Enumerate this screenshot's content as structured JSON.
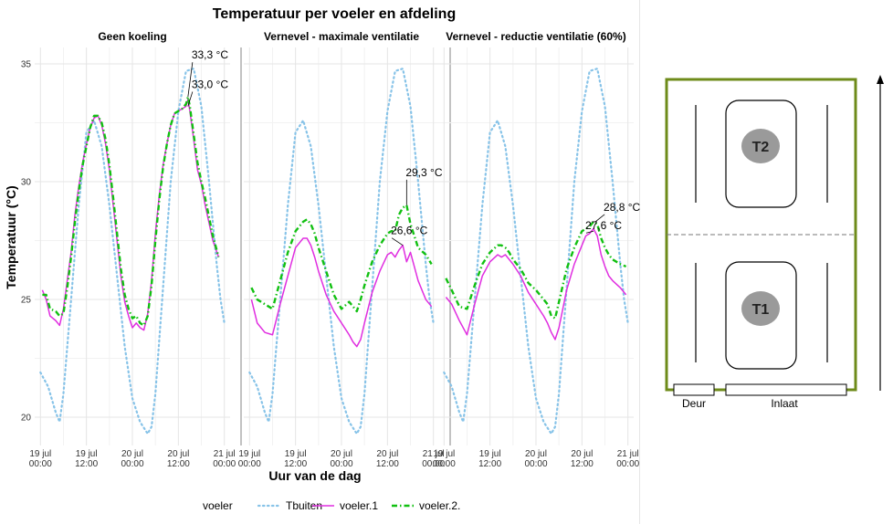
{
  "chart_data": {
    "type": "line",
    "title": "Temperatuur per voeler en afdeling",
    "xlabel": "Uur van de dag",
    "ylabel": "Temperatuur (°C)",
    "ylim": [
      18.8,
      35.7
    ],
    "xlim": [
      -1.5,
      49.5
    ],
    "x_unit": "hours since 19 jul 00:00",
    "x_ticks": [
      0,
      12,
      24,
      36,
      48
    ],
    "x_tick_labels": [
      "19 jul\n00:00",
      "19 jul\n12:00",
      "20 jul\n00:00",
      "20 jul\n12:00",
      "21 jul\n00:00"
    ],
    "y_ticks": [
      20,
      25,
      30,
      35
    ],
    "y_tick_labels": [
      "20",
      "25",
      "30",
      "35"
    ],
    "grid": true,
    "legend": {
      "title": "voeler",
      "placement": "bottom",
      "entries": [
        "Tbuiten",
        "voeler.1",
        "voeler.2."
      ]
    },
    "colors": {
      "Tbuiten": "#87c3e8",
      "voeler.1": "#e02ee0",
      "voeler.2.": "#11c011"
    },
    "outside": {
      "name": "Tbuiten",
      "x": [
        0,
        2,
        4,
        5,
        6,
        8,
        10,
        12,
        14,
        16,
        18,
        20,
        22,
        24,
        26,
        28,
        29,
        30,
        32,
        34,
        36,
        38,
        40,
        42,
        44,
        46,
        47,
        48
      ],
      "y": [
        21.9,
        21.3,
        20.2,
        19.8,
        21.0,
        25.0,
        29.0,
        32.1,
        32.6,
        31.5,
        29.0,
        26.0,
        23.0,
        20.8,
        19.8,
        19.3,
        19.6,
        21.0,
        25.5,
        30.0,
        33.0,
        34.7,
        34.8,
        33.2,
        30.0,
        26.5,
        25.0,
        24.0
      ]
    },
    "panels": [
      {
        "title": "Geen koeling",
        "series": [
          {
            "name": "voeler.1",
            "x": [
              0.5,
              1.5,
              2.5,
              4,
              5,
              6,
              7,
              8,
              9,
              10,
              11,
              12,
              13,
              14,
              15,
              16,
              17,
              18,
              19,
              20,
              21,
              22,
              23,
              24,
              25,
              26,
              27,
              28,
              29,
              30,
              31,
              32,
              33,
              34,
              35,
              36,
              37,
              38,
              38.5,
              39,
              40,
              41,
              42,
              43,
              45,
              46.5
            ],
            "y": [
              25.4,
              25.0,
              24.3,
              24.1,
              23.9,
              24.6,
              25.8,
              27.0,
              28.6,
              29.8,
              30.8,
              31.6,
              32.3,
              32.7,
              32.8,
              32.4,
              31.6,
              30.5,
              29.0,
              27.5,
              26.0,
              24.9,
              24.3,
              23.8,
              24.0,
              23.8,
              23.7,
              24.4,
              25.8,
              27.8,
              29.4,
              30.7,
              31.6,
              32.4,
              32.9,
              33.0,
              33.1,
              33.2,
              33.5,
              33.0,
              31.8,
              30.5,
              29.9,
              29.0,
              27.5,
              26.8
            ]
          },
          {
            "name": "voeler.2.",
            "x": [
              0.5,
              1.5,
              2.5,
              4,
              5,
              6,
              7,
              8,
              9,
              10,
              11,
              12,
              13,
              14,
              15,
              16,
              17,
              18,
              19,
              20,
              21,
              22,
              23,
              24,
              25,
              26,
              27,
              28,
              29,
              30,
              31,
              32,
              33,
              34,
              35,
              36,
              37,
              38,
              38.5,
              39,
              40,
              41,
              42,
              43,
              45,
              46.5
            ],
            "y": [
              25.2,
              25.2,
              24.6,
              24.5,
              24.3,
              24.4,
              25.5,
              26.8,
              28.3,
              29.6,
              30.7,
              31.5,
              32.3,
              32.8,
              32.8,
              32.5,
              31.8,
              30.7,
              29.3,
              27.8,
              26.3,
              25.2,
              24.6,
              24.2,
              24.3,
              24.0,
              23.9,
              24.3,
              25.6,
              27.5,
              29.2,
              30.6,
              31.6,
              32.4,
              32.9,
              33.0,
              33.1,
              33.3,
              33.6,
              33.2,
              32.0,
              30.8,
              30.0,
              29.3,
              27.7,
              26.8
            ]
          }
        ],
        "annotations": [
          {
            "text": "33,3 °C",
            "x": 38.5,
            "y": 33.6
          },
          {
            "text": "33,0 °C",
            "x": 38.5,
            "y": 33.2
          }
        ]
      },
      {
        "title": "Vernevel - maximale ventilatie",
        "series": [
          {
            "name": "voeler.1",
            "x": [
              0.5,
              2,
              4,
              6,
              8,
              10,
              12,
              14,
              15,
              16,
              17,
              18,
              20,
              22,
              24,
              26,
              27,
              28,
              29,
              30,
              32,
              34,
              36,
              37,
              38,
              39,
              40,
              41,
              42,
              43,
              44,
              46,
              47.5
            ],
            "y": [
              25.0,
              24.0,
              23.6,
              23.5,
              24.8,
              26.0,
              27.2,
              27.6,
              27.6,
              27.3,
              26.8,
              26.2,
              25.2,
              24.5,
              24.0,
              23.5,
              23.2,
              23.0,
              23.3,
              24.0,
              25.3,
              26.2,
              26.9,
              27.0,
              26.8,
              27.1,
              27.3,
              26.6,
              27.0,
              26.4,
              25.8,
              25.0,
              24.7
            ]
          },
          {
            "name": "voeler.2.",
            "x": [
              0.5,
              2,
              4,
              6,
              8,
              10,
              12,
              14,
              15,
              16,
              17,
              18,
              20,
              22,
              24,
              26,
              27,
              28,
              29,
              30,
              32,
              34,
              36,
              37,
              38,
              39,
              40,
              41,
              42,
              43,
              44,
              46,
              47.5
            ],
            "y": [
              25.5,
              25.0,
              24.8,
              24.6,
              25.8,
              27.0,
              27.9,
              28.3,
              28.4,
              28.2,
              27.8,
              27.2,
              26.2,
              25.2,
              24.6,
              24.9,
              24.7,
              24.5,
              25.0,
              25.6,
              26.6,
              27.3,
              27.8,
              27.9,
              27.9,
              28.6,
              28.9,
              29.0,
              28.2,
              27.7,
              27.2,
              26.9,
              26.5
            ]
          }
        ],
        "annotations": [
          {
            "text": "29,3 °C",
            "x": 41,
            "y": 29.0
          },
          {
            "text": "26,6 °C",
            "x": 40,
            "y": 27.3
          }
        ]
      },
      {
        "title": "Vernevel - reductie ventilatie (60%)",
        "series": [
          {
            "name": "voeler.1",
            "x": [
              0.5,
              2,
              4,
              6,
              8,
              10,
              12,
              14,
              15,
              16,
              17,
              18,
              20,
              22,
              24,
              26,
              27,
              28,
              29,
              30,
              32,
              34,
              36,
              37,
              38,
              39,
              40,
              41,
              42,
              43,
              44,
              46,
              47.5
            ],
            "y": [
              25.1,
              24.8,
              24.1,
              23.5,
              24.8,
              26.0,
              26.6,
              26.9,
              26.8,
              26.9,
              26.7,
              26.5,
              26.0,
              25.3,
              24.8,
              24.3,
              24.0,
              23.6,
              23.3,
              23.8,
              25.4,
              26.5,
              27.3,
              27.7,
              27.8,
              28.0,
              27.7,
              26.9,
              26.4,
              26.0,
              25.8,
              25.5,
              25.2
            ]
          },
          {
            "name": "voeler.2.",
            "x": [
              0.5,
              2,
              4,
              6,
              8,
              10,
              12,
              14,
              15,
              16,
              17,
              18,
              20,
              22,
              24,
              26,
              27,
              28,
              29,
              30,
              32,
              34,
              36,
              37,
              38,
              39,
              40,
              41,
              42,
              43,
              44,
              46,
              47.5
            ],
            "y": [
              25.9,
              25.4,
              24.7,
              24.6,
              25.6,
              26.5,
              27.0,
              27.3,
              27.3,
              27.2,
              27.0,
              26.7,
              26.3,
              25.7,
              25.4,
              25.0,
              24.8,
              24.3,
              24.2,
              24.9,
              26.3,
              27.2,
              27.9,
              28.0,
              28.1,
              28.3,
              28.2,
              27.6,
              27.2,
              26.9,
              26.7,
              26.5,
              26.4
            ]
          }
        ],
        "annotations": [
          {
            "text": "28,8 °C",
            "x": 39.5,
            "y": 28.3
          },
          {
            "text": "27,6 °C",
            "x": 39,
            "y": 27.9
          }
        ]
      }
    ]
  },
  "floorplan": {
    "sensors": [
      "T2",
      "T1"
    ],
    "labels": {
      "door": "Deur",
      "inlet": "Inlaat"
    },
    "colors": {
      "border": "#6e8b1a",
      "sensor": "#9a9a9a",
      "divider": "#777777"
    }
  }
}
